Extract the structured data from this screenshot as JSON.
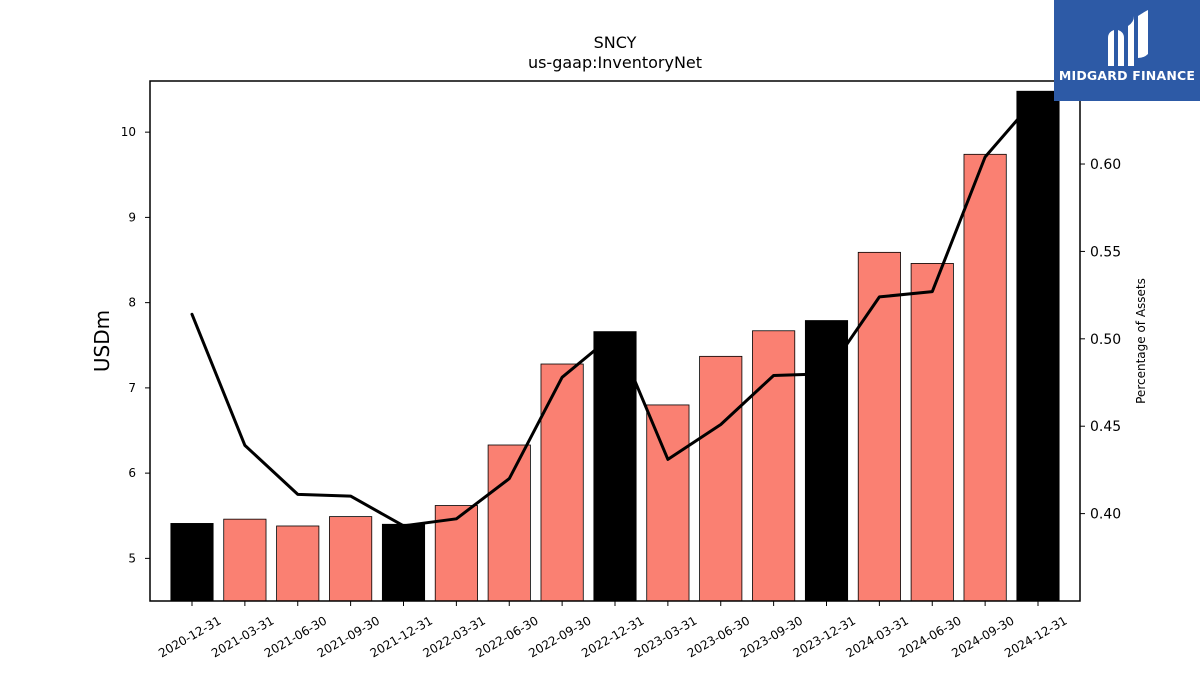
{
  "brand": {
    "name": "MIDGARD FINANCE",
    "bg_color": "#2d5aa6"
  },
  "chart_data": {
    "type": "bar",
    "title": "SNCY",
    "subtitle": "us-gaap:InventoryNet",
    "ylabel": "USDm",
    "y2label": "Percentage of Assets",
    "categories": [
      "2020-12-31",
      "2021-03-31",
      "2021-06-30",
      "2021-09-30",
      "2021-12-31",
      "2022-03-31",
      "2022-06-30",
      "2022-09-30",
      "2022-12-31",
      "2023-03-31",
      "2023-06-30",
      "2023-09-30",
      "2023-12-31",
      "2024-03-31",
      "2024-06-30",
      "2024-09-30",
      "2024-12-31"
    ],
    "series": [
      {
        "values": [
          5.41,
          5.46,
          5.38,
          5.49,
          5.4,
          5.62,
          6.33,
          7.28,
          7.66,
          6.8,
          7.37,
          7.67,
          7.79,
          8.59,
          8.46,
          9.74,
          10.48
        ]
      },
      {
        "axis": "right",
        "type": "line",
        "values": [
          0.514,
          0.439,
          0.411,
          0.41,
          0.393,
          0.397,
          0.42,
          0.478,
          0.503,
          0.431,
          0.451,
          0.479,
          0.48,
          0.524,
          0.527,
          0.604,
          0.639
        ]
      }
    ],
    "bar_colors": [
      "#000000",
      "#fa8072",
      "#fa8072",
      "#fa8072",
      "#000000",
      "#fa8072",
      "#fa8072",
      "#fa8072",
      "#000000",
      "#fa8072",
      "#fa8072",
      "#fa8072",
      "#000000",
      "#fa8072",
      "#fa8072",
      "#fa8072",
      "#000000"
    ],
    "line_color": "#000000",
    "ylim": [
      4.5,
      10.6
    ],
    "yticks": [
      5,
      6,
      7,
      8,
      9,
      10
    ],
    "y2lim": [
      0.35,
      0.6475
    ],
    "y2ticks": [
      "0.40",
      "0.45",
      "0.50",
      "0.55",
      "0.60"
    ],
    "grid": false,
    "legend": "none"
  }
}
